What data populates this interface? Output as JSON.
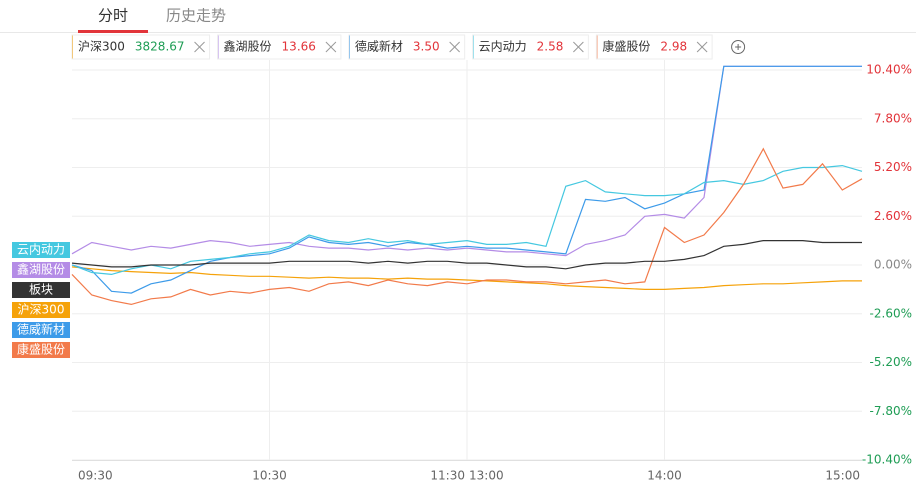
{
  "tabs": [
    "分时",
    "历史走势"
  ],
  "chart_data": {
    "type": "line",
    "x": [
      "09:30",
      "09:36",
      "09:42",
      "09:48",
      "09:54",
      "10:00",
      "10:06",
      "10:12",
      "10:18",
      "10:24",
      "10:30",
      "10:36",
      "10:42",
      "10:48",
      "10:54",
      "11:00",
      "11:06",
      "11:12",
      "11:18",
      "11:24",
      "11:30",
      "13:06",
      "13:12",
      "13:18",
      "13:24",
      "13:30",
      "13:36",
      "13:42",
      "13:48",
      "13:54",
      "14:00",
      "14:06",
      "14:12",
      "14:18",
      "14:24",
      "14:30",
      "14:36",
      "14:42",
      "14:48",
      "14:54",
      "15:00"
    ],
    "xticks": [
      "09:30",
      "10:30",
      "11:30",
      "13:00",
      "14:00",
      "15:00"
    ],
    "ylim": [
      -10.4,
      10.4
    ],
    "yticks": [
      {
        "value": 10.4,
        "label": "10.40%"
      },
      {
        "value": 7.8,
        "label": "7.80%"
      },
      {
        "value": 5.2,
        "label": "5.20%"
      },
      {
        "value": 2.6,
        "label": "2.60%"
      },
      {
        "value": 0,
        "label": "0.00%"
      },
      {
        "value": -2.6,
        "label": "-2.60%"
      },
      {
        "value": -5.2,
        "label": "-5.20%"
      },
      {
        "value": -7.8,
        "label": "-7.80%"
      },
      {
        "value": -10.4,
        "label": "-10.40%"
      }
    ],
    "grid": true,
    "series": [
      {
        "name": "沪深300",
        "color": "#f5a20a",
        "price": "3828.67",
        "price_color": "#1f9d55",
        "values": [
          -0.1,
          -0.2,
          -0.3,
          -0.35,
          -0.4,
          -0.45,
          -0.4,
          -0.5,
          -0.55,
          -0.6,
          -0.6,
          -0.65,
          -0.7,
          -0.65,
          -0.7,
          -0.7,
          -0.75,
          -0.7,
          -0.75,
          -0.75,
          -0.8,
          -0.85,
          -0.9,
          -0.95,
          -1.0,
          -1.1,
          -1.15,
          -1.2,
          -1.25,
          -1.3,
          -1.3,
          -1.25,
          -1.2,
          -1.1,
          -1.05,
          -1.0,
          -1.0,
          -0.95,
          -0.9,
          -0.85,
          -0.85
        ]
      },
      {
        "name": "鑫湖股份",
        "color": "#b48ce6",
        "price": "13.66",
        "price_color": "#e2343a",
        "values": [
          0.6,
          1.2,
          1.0,
          0.8,
          1.0,
          0.9,
          1.1,
          1.3,
          1.2,
          1.0,
          1.1,
          1.2,
          1.0,
          0.9,
          0.9,
          0.8,
          0.9,
          0.8,
          0.9,
          0.8,
          0.9,
          0.8,
          0.7,
          0.7,
          0.6,
          0.5,
          1.1,
          1.3,
          1.6,
          2.6,
          2.7,
          2.5,
          3.6,
          10.6,
          10.6,
          10.6,
          10.6,
          10.6,
          10.6,
          10.6,
          10.6
        ]
      },
      {
        "name": "德威新材",
        "color": "#3d9be9",
        "price": "3.50",
        "price_color": "#e2343a",
        "values": [
          0,
          -0.3,
          -1.4,
          -1.5,
          -1.0,
          -0.8,
          -0.3,
          0.2,
          0.4,
          0.5,
          0.6,
          0.9,
          1.5,
          1.2,
          1.1,
          1.2,
          1.0,
          1.2,
          1.1,
          0.9,
          1.0,
          0.9,
          0.9,
          0.8,
          0.7,
          0.6,
          3.5,
          3.4,
          3.6,
          3.0,
          3.3,
          3.8,
          4.0,
          10.6,
          10.6,
          10.6,
          10.6,
          10.6,
          10.6,
          10.6,
          10.6
        ]
      },
      {
        "name": "云内动力",
        "color": "#45c8e0",
        "price": "2.58",
        "price_color": "#e2343a",
        "values": [
          0,
          -0.4,
          -0.5,
          -0.2,
          0,
          -0.2,
          0.2,
          0.3,
          0.4,
          0.6,
          0.7,
          1.0,
          1.6,
          1.3,
          1.2,
          1.4,
          1.2,
          1.3,
          1.1,
          1.2,
          1.3,
          1.1,
          1.1,
          1.2,
          1.0,
          4.2,
          4.5,
          3.9,
          3.8,
          3.7,
          3.7,
          3.8,
          4.4,
          4.5,
          4.3,
          4.5,
          5.0,
          5.2,
          5.2,
          5.3,
          5.0
        ]
      },
      {
        "name": "康盛股份",
        "color": "#f27a4a",
        "price": "2.98",
        "price_color": "#e2343a",
        "values": [
          -0.5,
          -1.6,
          -1.9,
          -2.1,
          -1.8,
          -1.7,
          -1.3,
          -1.6,
          -1.4,
          -1.5,
          -1.3,
          -1.2,
          -1.4,
          -1.0,
          -0.9,
          -1.1,
          -0.8,
          -1.0,
          -1.1,
          -0.9,
          -1.0,
          -0.8,
          -0.8,
          -0.9,
          -0.9,
          -1.0,
          -0.9,
          -0.8,
          -1.0,
          -0.9,
          2.0,
          1.2,
          1.6,
          2.8,
          4.3,
          6.2,
          4.1,
          4.3,
          5.4,
          4.0,
          4.6
        ]
      },
      {
        "name": "板块",
        "color": "#333333",
        "values": [
          0.1,
          0,
          -0.1,
          -0.1,
          0,
          0,
          0,
          0.1,
          0.1,
          0.1,
          0.1,
          0.2,
          0.2,
          0.2,
          0.2,
          0.1,
          0.2,
          0.1,
          0.2,
          0.2,
          0.1,
          0.1,
          0,
          -0.1,
          -0.1,
          -0.2,
          0,
          0.1,
          0.1,
          0.2,
          0.2,
          0.3,
          0.5,
          1.0,
          1.1,
          1.3,
          1.3,
          1.3,
          1.2,
          1.2,
          1.2
        ]
      }
    ]
  }
}
